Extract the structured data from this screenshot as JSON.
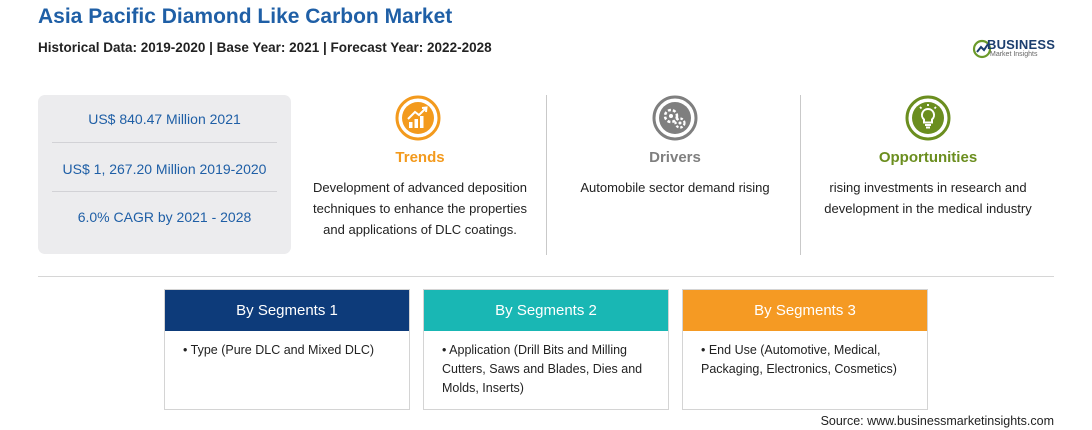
{
  "header": {
    "title": "Asia Pacific Diamond Like Carbon Market",
    "subtitle": "Historical Data: 2019-2020 | Base Year: 2021 | Forecast Year: 2022-2028"
  },
  "logo": {
    "word": "BUSINESS",
    "sub": "Market Insights"
  },
  "stats": [
    "US$ 840.47 Million 2021",
    "US$ 1, 267.20 Million 2019-2020",
    "6.0% CAGR by 2021 - 2028"
  ],
  "columns": {
    "trends": {
      "heading": "Trends",
      "lines": [
        "Development of advanced deposition",
        "techniques to enhance the properties",
        "and applications of DLC coatings."
      ],
      "icon": "growth-chart-icon",
      "color": "#f39a1d"
    },
    "drivers": {
      "heading": "Drivers",
      "lines": [
        "Automobile sector demand rising"
      ],
      "icon": "gears-icon",
      "color": "#7f7f7f"
    },
    "opportunities": {
      "heading": "Opportunities",
      "lines": [
        "rising investments in research and",
        "development in the medical industry"
      ],
      "icon": "lightbulb-icon",
      "color": "#6b8e1f"
    }
  },
  "segments": [
    {
      "title": "By Segments 1",
      "lines": [
        "• Type (Pure DLC and Mixed DLC)"
      ],
      "color": "#0d3b7a"
    },
    {
      "title": "By Segments 2",
      "lines": [
        "• Application (Drill Bits and Milling",
        "Cutters, Saws and Blades, Dies and",
        "Molds, Inserts)"
      ],
      "color": "#19b7b4"
    },
    {
      "title": "By Segments 3",
      "lines": [
        "• End Use (Automotive, Medical,",
        "Packaging, Electronics, Cosmetics)"
      ],
      "color": "#f59a23"
    }
  ],
  "source": "Source: www.businessmarketinsights.com"
}
